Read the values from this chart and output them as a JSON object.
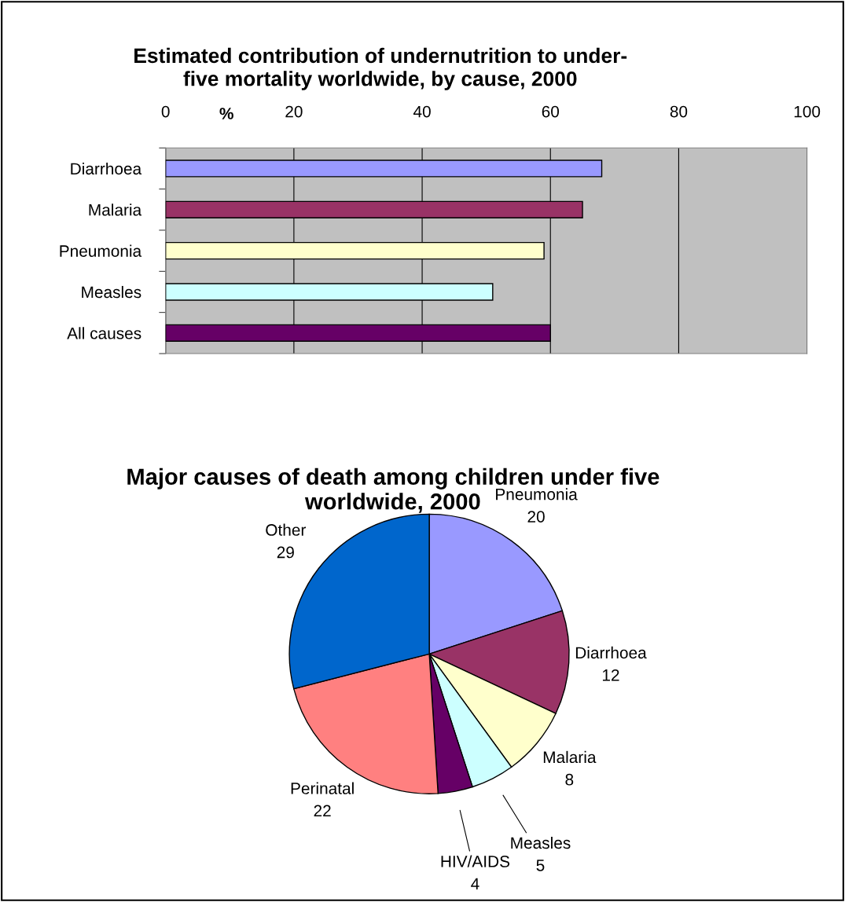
{
  "chart_data": [
    {
      "type": "bar",
      "orientation": "horizontal",
      "title": "Estimated contribution of undernutrition to under-\nfive mortality worldwide, by cause, 2000",
      "xlabel": "%",
      "categories": [
        "Diarrhoea",
        "Malaria",
        "Pneumonia",
        "Measles",
        "All causes"
      ],
      "values": [
        68,
        65,
        59,
        51,
        60
      ],
      "colors": [
        "#9999ff",
        "#993366",
        "#ffffcc",
        "#ccffff",
        "#660066"
      ],
      "xlim": [
        0,
        100
      ],
      "xticks": [
        0,
        20,
        40,
        60,
        80,
        100
      ],
      "grid": "x",
      "legend": false
    },
    {
      "type": "pie",
      "title": "Major causes of death among children under five\nworldwide, 2000",
      "categories": [
        "Pneumonia",
        "Diarrhoea",
        "Malaria",
        "Measles",
        "HIV/AIDS",
        "Perinatal",
        "Other"
      ],
      "values": [
        20,
        12,
        8,
        5,
        4,
        22,
        29
      ],
      "colors": [
        "#9999ff",
        "#993366",
        "#ffffcc",
        "#ccffff",
        "#660066",
        "#ff8080",
        "#0066cc"
      ],
      "data_labels": true,
      "legend": false
    }
  ]
}
